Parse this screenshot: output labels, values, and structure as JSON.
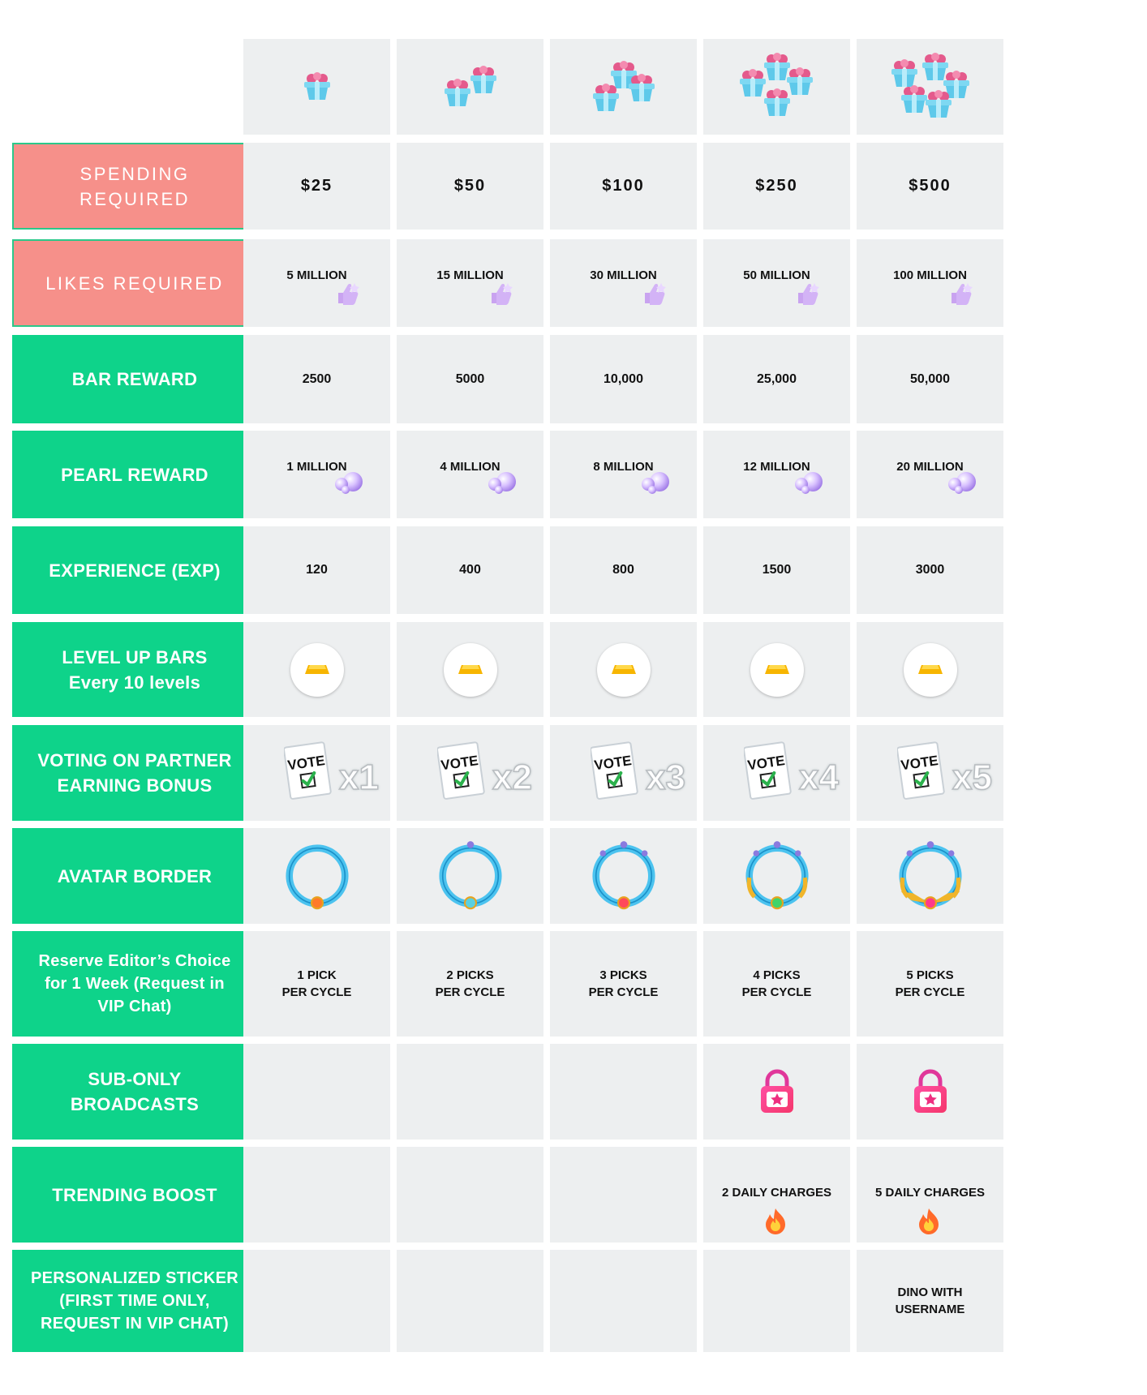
{
  "columns": 5,
  "labels": {
    "spending": "SPENDING REQUIRED",
    "likes": "LIKES  REQUIRED",
    "bar": "BAR REWARD",
    "pearl": "PEARL REWARD",
    "exp": "EXPERIENCE (EXP)",
    "levelup": "LEVEL UP BARS\nEvery 10 levels",
    "voting": "VOTING ON PARTNER\nEARNING BONUS",
    "avatar": "AVATAR BORDER",
    "reserve": "Reserve Editor’s Choice\nfor 1 Week (Request in\nVIP Chat)",
    "subonly": "SUB-ONLY\nBROADCASTS",
    "trending": "TRENDING BOOST",
    "sticker": "PERSONALIZED STICKER\n(FIRST TIME ONLY,\nREQUEST IN VIP CHAT)"
  },
  "tiers": [
    {
      "gift_count": 1,
      "spending": "$25",
      "likes": "5 MILLION",
      "bar": "2500",
      "pearl": "1 MILLION",
      "exp": "120",
      "vote": "x1",
      "reserve": "1 PICK\nPER CYCLE",
      "subonly": false,
      "trending": "",
      "sticker": ""
    },
    {
      "gift_count": 2,
      "spending": "$50",
      "likes": "15 MILLION",
      "bar": "5000",
      "pearl": "4 MILLION",
      "exp": "400",
      "vote": "x2",
      "reserve": "2 PICKS\nPER CYCLE",
      "subonly": false,
      "trending": "",
      "sticker": ""
    },
    {
      "gift_count": 3,
      "spending": "$100",
      "likes": "30 MILLION",
      "bar": "10,000",
      "pearl": "8 MILLION",
      "exp": "800",
      "vote": "x3",
      "reserve": "3 PICKS\nPER CYCLE",
      "subonly": false,
      "trending": "",
      "sticker": ""
    },
    {
      "gift_count": 4,
      "spending": "$250",
      "likes": "50 MILLION",
      "bar": "25,000",
      "pearl": "12 MILLION",
      "exp": "1500",
      "vote": "x4",
      "reserve": "4 PICKS\nPER CYCLE",
      "subonly": true,
      "trending": "2 DAILY CHARGES",
      "sticker": ""
    },
    {
      "gift_count": 5,
      "spending": "$500",
      "likes": "100 MILLION",
      "bar": "50,000",
      "pearl": "20 MILLION",
      "exp": "3000",
      "vote": "x5",
      "reserve": "5 PICKS\nPER CYCLE",
      "subonly": true,
      "trending": "5 DAILY CHARGES",
      "sticker": "DINO WITH\nUSERNAME"
    }
  ],
  "colors": {
    "label_green": "#0ed38a",
    "label_pink": "#f6908a",
    "cell_grey": "#edeff0",
    "gift_blue": "#5ec9ea",
    "lock_pink": "#ee3a9a",
    "flame_orange": "#ff6a2a"
  },
  "icons": {
    "header": "gift-box-icon",
    "likes": "thumbs-up-icon",
    "pearl": "pearl-icon",
    "levelup": "gold-bar-icon",
    "voting": "vote-card-icon",
    "avatar": "avatar-ring-icon",
    "subonly": "lock-icon",
    "trending": "flame-icon"
  }
}
